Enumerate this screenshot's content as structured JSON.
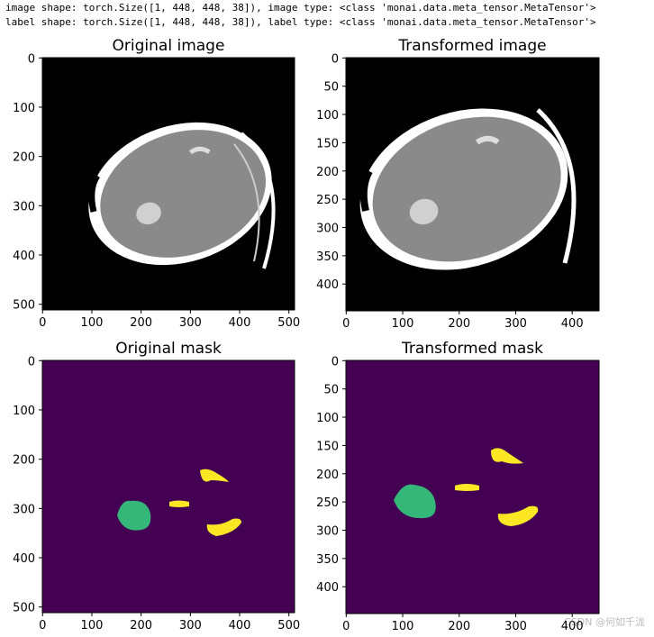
{
  "header": {
    "lines": [
      "image shape: torch.Size([1, 448, 448, 38]), image type: <class 'monai.data.meta_tensor.MetaTensor'>",
      "label shape: torch.Size([1, 448, 448, 38]), label type: <class 'monai.data.meta_tensor.MetaTensor'>"
    ]
  },
  "chart_data": [
    {
      "type": "image",
      "title": "Original image",
      "xlim": [
        -0.5,
        511.5
      ],
      "ylim": [
        511.5,
        -0.5
      ],
      "xticks": [
        0,
        100,
        200,
        300,
        400,
        500
      ],
      "yticks": [
        0,
        100,
        200,
        300,
        400,
        500
      ]
    },
    {
      "type": "image",
      "title": "Transformed image",
      "xlim": [
        -0.5,
        447.5
      ],
      "ylim": [
        447.5,
        -0.5
      ],
      "xticks": [
        0,
        100,
        200,
        300,
        400
      ],
      "yticks": [
        0,
        50,
        100,
        150,
        200,
        250,
        300,
        350,
        400
      ]
    },
    {
      "type": "image",
      "title": "Original mask",
      "xlim": [
        -0.5,
        511.5
      ],
      "ylim": [
        511.5,
        -0.5
      ],
      "xticks": [
        0,
        100,
        200,
        300,
        400,
        500
      ],
      "yticks": [
        0,
        100,
        200,
        300,
        400,
        500
      ]
    },
    {
      "type": "image",
      "title": "Transformed mask",
      "xlim": [
        -0.5,
        447.5
      ],
      "ylim": [
        447.5,
        -0.5
      ],
      "xticks": [
        0,
        100,
        200,
        300,
        400
      ],
      "yticks": [
        0,
        50,
        100,
        150,
        200,
        250,
        300,
        350,
        400
      ]
    }
  ],
  "watermark": "CSDN @何如千泷"
}
